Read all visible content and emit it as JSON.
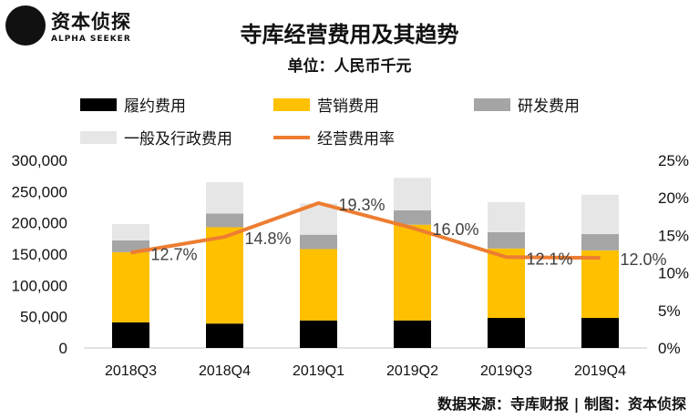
{
  "logo": {
    "cn": "资本侦探",
    "en": "ALPHA SEEKER"
  },
  "title": "寺库经营费用及其趋势",
  "unit": "单位：人民币千元",
  "source": "数据来源：寺库财报 | 制图：资本侦探",
  "chart_data": {
    "type": "bar+line",
    "stacked": true,
    "categories": [
      "2018Q3",
      "2018Q4",
      "2019Q1",
      "2019Q2",
      "2019Q3",
      "2019Q4"
    ],
    "series": [
      {
        "name": "履约费用",
        "color": "#000000",
        "values": [
          41000,
          39000,
          44000,
          44000,
          48000,
          48000
        ]
      },
      {
        "name": "营销费用",
        "color": "#FFC000",
        "values": [
          112000,
          154000,
          114000,
          153000,
          111000,
          108000
        ]
      },
      {
        "name": "研发费用",
        "color": "#A5A5A5",
        "values": [
          19000,
          22000,
          23000,
          23000,
          26000,
          26000
        ]
      },
      {
        "name": "一般及行政费用",
        "color": "#E7E6E6",
        "values": [
          26000,
          50000,
          50000,
          52000,
          48000,
          63000
        ]
      }
    ],
    "line": {
      "name": "经营费用率",
      "color": "#ED7D31",
      "axis": "right",
      "values": [
        12.7,
        14.8,
        19.3,
        16.0,
        12.1,
        12.0
      ],
      "labels": [
        "12.7%",
        "14.8%",
        "19.3%",
        "16.0%",
        "12.1%",
        "12.0%"
      ]
    },
    "ylim": [
      0,
      300000
    ],
    "yticks": [
      "0",
      "50,000",
      "100,000",
      "150,000",
      "200,000",
      "250,000",
      "300,000"
    ],
    "y2lim": [
      0,
      25
    ],
    "y2ticks": [
      "0%",
      "5%",
      "10%",
      "15%",
      "20%",
      "25%"
    ],
    "grid": false,
    "legend": "top"
  }
}
